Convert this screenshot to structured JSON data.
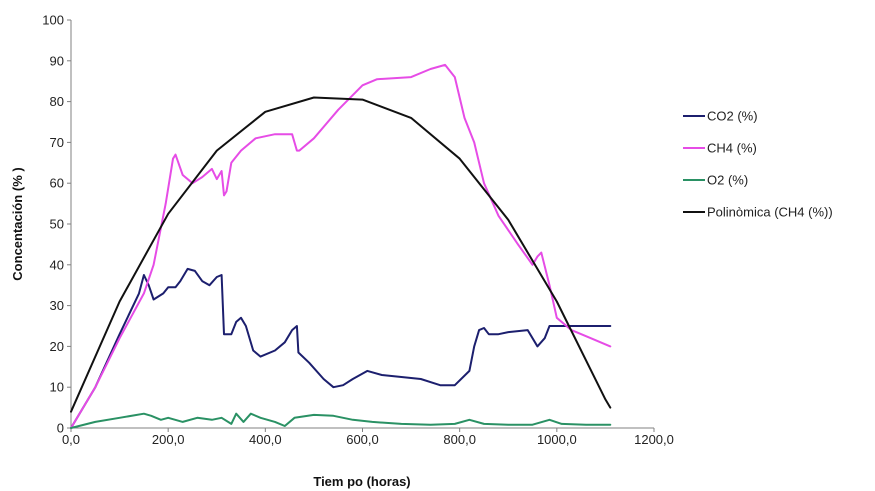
{
  "chart_data": {
    "type": "line",
    "title": "",
    "xlabel": "Tiem po (horas)",
    "ylabel": "Concentación (% )",
    "xlim": [
      0,
      1200
    ],
    "ylim": [
      0,
      100
    ],
    "x_ticks": [
      0,
      200,
      400,
      600,
      800,
      1000,
      1200
    ],
    "x_tick_labels": [
      "0,0",
      "200,0",
      "400,0",
      "600,0",
      "800,0",
      "1000,0",
      "1200,0"
    ],
    "y_ticks": [
      0,
      10,
      20,
      30,
      40,
      50,
      60,
      70,
      80,
      90,
      100
    ],
    "y_tick_labels": [
      "0",
      "10",
      "20",
      "30",
      "40",
      "50",
      "60",
      "70",
      "80",
      "90",
      "100"
    ],
    "grid": false,
    "legend_position": "right",
    "series": [
      {
        "name": "CO2 (%)",
        "color": "#1c1f6e",
        "points": [
          [
            0,
            0
          ],
          [
            50,
            10
          ],
          [
            100,
            23
          ],
          [
            140,
            33
          ],
          [
            150,
            37.5
          ],
          [
            160,
            35
          ],
          [
            170,
            31.5
          ],
          [
            190,
            33
          ],
          [
            200,
            34.5
          ],
          [
            215,
            34.5
          ],
          [
            225,
            36
          ],
          [
            240,
            39
          ],
          [
            255,
            38.5
          ],
          [
            270,
            36
          ],
          [
            285,
            35
          ],
          [
            300,
            37
          ],
          [
            310,
            37.5
          ],
          [
            315,
            23
          ],
          [
            330,
            23
          ],
          [
            340,
            26
          ],
          [
            350,
            27
          ],
          [
            360,
            25
          ],
          [
            375,
            19
          ],
          [
            390,
            17.5
          ],
          [
            420,
            19
          ],
          [
            440,
            21
          ],
          [
            455,
            24
          ],
          [
            465,
            25
          ],
          [
            468,
            18.5
          ],
          [
            490,
            16
          ],
          [
            520,
            12
          ],
          [
            540,
            10
          ],
          [
            560,
            10.5
          ],
          [
            580,
            12
          ],
          [
            610,
            14
          ],
          [
            640,
            13
          ],
          [
            680,
            12.5
          ],
          [
            720,
            12
          ],
          [
            760,
            10.5
          ],
          [
            790,
            10.5
          ],
          [
            820,
            14
          ],
          [
            830,
            20
          ],
          [
            840,
            24
          ],
          [
            850,
            24.5
          ],
          [
            860,
            23
          ],
          [
            880,
            23
          ],
          [
            900,
            23.5
          ],
          [
            940,
            24
          ],
          [
            955,
            21
          ],
          [
            960,
            20
          ],
          [
            975,
            22
          ],
          [
            985,
            25
          ],
          [
            1000,
            25
          ],
          [
            1020,
            25
          ],
          [
            1060,
            25
          ],
          [
            1110,
            25
          ]
        ]
      },
      {
        "name": "CH4 (%)",
        "color": "#e64ce6",
        "points": [
          [
            0,
            0
          ],
          [
            50,
            10
          ],
          [
            100,
            22
          ],
          [
            150,
            33
          ],
          [
            170,
            40
          ],
          [
            195,
            55
          ],
          [
            210,
            66
          ],
          [
            215,
            67
          ],
          [
            230,
            62
          ],
          [
            250,
            60
          ],
          [
            270,
            61.5
          ],
          [
            290,
            63.5
          ],
          [
            300,
            61
          ],
          [
            310,
            63
          ],
          [
            315,
            57
          ],
          [
            320,
            58
          ],
          [
            330,
            65
          ],
          [
            350,
            68
          ],
          [
            380,
            71
          ],
          [
            420,
            72
          ],
          [
            455,
            72
          ],
          [
            465,
            68
          ],
          [
            470,
            68
          ],
          [
            500,
            71
          ],
          [
            550,
            78
          ],
          [
            600,
            84
          ],
          [
            630,
            85.5
          ],
          [
            700,
            86
          ],
          [
            740,
            88
          ],
          [
            770,
            89
          ],
          [
            790,
            86
          ],
          [
            810,
            76
          ],
          [
            830,
            70
          ],
          [
            850,
            60
          ],
          [
            880,
            52
          ],
          [
            920,
            45
          ],
          [
            950,
            40
          ],
          [
            960,
            42
          ],
          [
            968,
            43
          ],
          [
            985,
            35
          ],
          [
            1000,
            27
          ],
          [
            1030,
            24
          ],
          [
            1070,
            22
          ],
          [
            1110,
            20
          ]
        ]
      },
      {
        "name": "O2 (%)",
        "color": "#2a9164",
        "points": [
          [
            0,
            0
          ],
          [
            50,
            1.5
          ],
          [
            100,
            2.5
          ],
          [
            150,
            3.5
          ],
          [
            165,
            3
          ],
          [
            185,
            2
          ],
          [
            200,
            2.5
          ],
          [
            230,
            1.5
          ],
          [
            260,
            2.5
          ],
          [
            290,
            2
          ],
          [
            310,
            2.5
          ],
          [
            330,
            1
          ],
          [
            340,
            3.5
          ],
          [
            355,
            1.5
          ],
          [
            370,
            3.5
          ],
          [
            390,
            2.5
          ],
          [
            420,
            1.5
          ],
          [
            440,
            0.5
          ],
          [
            460,
            2.5
          ],
          [
            500,
            3.2
          ],
          [
            540,
            3
          ],
          [
            580,
            2
          ],
          [
            620,
            1.5
          ],
          [
            680,
            1
          ],
          [
            740,
            0.8
          ],
          [
            790,
            1
          ],
          [
            820,
            2
          ],
          [
            850,
            1
          ],
          [
            900,
            0.8
          ],
          [
            950,
            0.8
          ],
          [
            985,
            2
          ],
          [
            1010,
            1
          ],
          [
            1060,
            0.8
          ],
          [
            1110,
            0.8
          ]
        ]
      },
      {
        "name": "Polinòmica (CH4 (%))",
        "color": "#111111",
        "points": [
          [
            0,
            4
          ],
          [
            100,
            31
          ],
          [
            200,
            52.5
          ],
          [
            300,
            68
          ],
          [
            400,
            77.5
          ],
          [
            500,
            81
          ],
          [
            600,
            80.5
          ],
          [
            700,
            76
          ],
          [
            800,
            66
          ],
          [
            900,
            51
          ],
          [
            1000,
            31
          ],
          [
            1100,
            7
          ],
          [
            1110,
            5
          ]
        ]
      }
    ]
  }
}
